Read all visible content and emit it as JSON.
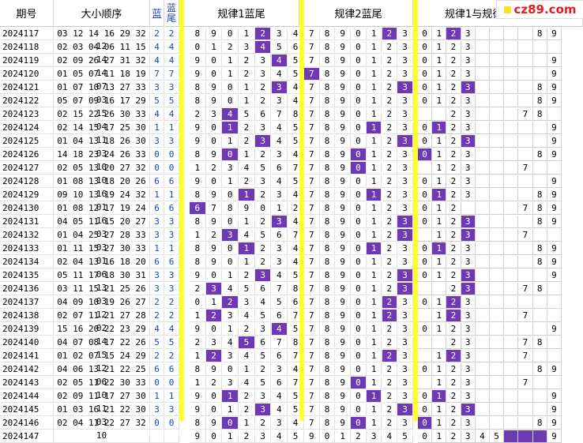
{
  "headers": {
    "issue": "期号",
    "order": "大小顺序",
    "blue": "蓝",
    "tail": [
      "蓝",
      "尾"
    ],
    "rule1": "规律1蓝尾",
    "rule2": "规律2蓝尾",
    "rule12": "规律1与规律"
  },
  "watermark": "cz89.com",
  "colors": {
    "highlight": "#6f39b5",
    "separator": "#ffff29",
    "blue_text": "#1f3fbf"
  },
  "rows": [
    {
      "issue": "2024117",
      "nums": "03 12 14 16 29 32 12",
      "blue": "2",
      "tail": "2",
      "r1": [
        "8",
        "9",
        "0",
        "1",
        "2",
        "3",
        "4"
      ],
      "r1h": [
        4
      ],
      "r2": [
        "7",
        "8",
        "9",
        "0",
        "1",
        "2",
        "3"
      ],
      "r2h": [
        5
      ],
      "r3": [
        "0",
        "1",
        "2",
        "3",
        "",
        "",
        "",
        "",
        "8",
        "9"
      ],
      "r3h": [
        2
      ]
    },
    {
      "issue": "2024118",
      "nums": "02 03 04 06 11 15 14",
      "blue": "4",
      "tail": "4",
      "r1": [
        "0",
        "1",
        "2",
        "3",
        "4",
        "5",
        "6"
      ],
      "r1h": [
        4
      ],
      "r2": [
        "7",
        "8",
        "9",
        "0",
        "1",
        "2",
        "3"
      ],
      "r2h": [],
      "r3": [
        "0",
        "1",
        "2",
        "3",
        "",
        "",
        "",
        "",
        "",
        ""
      ],
      "r3h": []
    },
    {
      "issue": "2024119",
      "nums": "02 09 26 27 31 32 14",
      "blue": "4",
      "tail": "4",
      "r1": [
        "9",
        "0",
        "1",
        "2",
        "3",
        "4",
        "5"
      ],
      "r1h": [
        5
      ],
      "r2": [
        "7",
        "8",
        "9",
        "0",
        "1",
        "2",
        "3"
      ],
      "r2h": [],
      "r3": [
        "0",
        "1",
        "2",
        "3",
        "",
        "",
        "",
        "",
        "",
        "9"
      ],
      "r3h": []
    },
    {
      "issue": "2024120",
      "nums": "01 05 07 11 18 19 07",
      "blue": "7",
      "tail": "7",
      "r1": [
        "9",
        "0",
        "1",
        "2",
        "3",
        "4",
        "5"
      ],
      "r1h": [],
      "r2": [
        "7",
        "8",
        "9",
        "0",
        "1",
        "2",
        "3"
      ],
      "r2h": [
        0
      ],
      "r3": [
        "0",
        "1",
        "2",
        "3",
        "",
        "",
        "",
        "",
        "",
        "9"
      ],
      "r3h": []
    },
    {
      "issue": "2024121",
      "nums": "01 07 10 13 27 33 03",
      "blue": "3",
      "tail": "3",
      "r1": [
        "8",
        "9",
        "0",
        "1",
        "2",
        "3",
        "4"
      ],
      "r1h": [
        5
      ],
      "r2": [
        "7",
        "8",
        "9",
        "0",
        "1",
        "2",
        "3"
      ],
      "r2h": [
        6
      ],
      "r3": [
        "0",
        "1",
        "2",
        "3",
        "",
        "",
        "",
        "",
        "8",
        "9"
      ],
      "r3h": [
        3
      ]
    },
    {
      "issue": "2024122",
      "nums": "05 07 09 16 17 29 15",
      "blue": "5",
      "tail": "5",
      "r1": [
        "8",
        "9",
        "0",
        "1",
        "2",
        "3",
        "4"
      ],
      "r1h": [],
      "r2": [
        "7",
        "8",
        "9",
        "0",
        "1",
        "2",
        "3"
      ],
      "r2h": [],
      "r3": [
        "0",
        "1",
        "2",
        "3",
        "",
        "",
        "",
        "",
        "8",
        "9"
      ],
      "r3h": []
    },
    {
      "issue": "2024123",
      "nums": "02 15 22 26 30 33 04",
      "blue": "4",
      "tail": "4",
      "r1": [
        "2",
        "3",
        "4",
        "5",
        "6",
        "7",
        "8"
      ],
      "r1h": [
        2
      ],
      "r2": [
        "7",
        "8",
        "9",
        "0",
        "1",
        "2",
        "3"
      ],
      "r2h": [],
      "r3": [
        "",
        "",
        "2",
        "3",
        "",
        "",
        "",
        "7",
        "8",
        ""
      ],
      "r3h": []
    },
    {
      "issue": "2024124",
      "nums": "02 14 15 17 25 30 11",
      "blue": "1",
      "tail": "1",
      "r1": [
        "9",
        "0",
        "1",
        "2",
        "3",
        "4",
        "5"
      ],
      "r1h": [
        2
      ],
      "r2": [
        "7",
        "8",
        "9",
        "0",
        "1",
        "2",
        "3"
      ],
      "r2h": [
        4
      ],
      "r3": [
        "0",
        "1",
        "2",
        "3",
        "",
        "",
        "",
        "",
        "",
        "9"
      ],
      "r3h": [
        1
      ]
    },
    {
      "issue": "2024125",
      "nums": "01 04 13 18 26 30 03",
      "blue": "3",
      "tail": "3",
      "r1": [
        "9",
        "0",
        "1",
        "2",
        "3",
        "4",
        "5"
      ],
      "r1h": [
        4
      ],
      "r2": [
        "7",
        "8",
        "9",
        "0",
        "1",
        "2",
        "3"
      ],
      "r2h": [
        6
      ],
      "r3": [
        "0",
        "1",
        "2",
        "3",
        "",
        "",
        "",
        "",
        "",
        "9"
      ],
      "r3h": [
        3
      ]
    },
    {
      "issue": "2024126",
      "nums": "14 18 23 24 26 33 10",
      "blue": "0",
      "tail": "0",
      "r1": [
        "8",
        "9",
        "0",
        "1",
        "2",
        "3",
        "4"
      ],
      "r1h": [
        2
      ],
      "r2": [
        "7",
        "8",
        "9",
        "0",
        "1",
        "2",
        "3"
      ],
      "r2h": [
        3
      ],
      "r3": [
        "0",
        "1",
        "2",
        "3",
        "",
        "",
        "",
        "",
        "8",
        "9"
      ],
      "r3h": [
        0
      ]
    },
    {
      "issue": "2024127",
      "nums": "02 05 13 20 27 32 10",
      "blue": "0",
      "tail": "0",
      "r1": [
        "1",
        "2",
        "3",
        "4",
        "5",
        "6",
        "7"
      ],
      "r1h": [],
      "r2": [
        "7",
        "8",
        "9",
        "0",
        "1",
        "2",
        "3"
      ],
      "r2h": [
        3
      ],
      "r3": [
        "",
        "1",
        "2",
        "3",
        "",
        "",
        "",
        "7",
        "",
        ""
      ],
      "r3h": []
    },
    {
      "issue": "2024128",
      "nums": "01 08 13 18 20 26 16",
      "blue": "6",
      "tail": "6",
      "r1": [
        "9",
        "0",
        "1",
        "2",
        "3",
        "4",
        "5"
      ],
      "r1h": [],
      "r2": [
        "7",
        "8",
        "9",
        "0",
        "1",
        "2",
        "3"
      ],
      "r2h": [],
      "r3": [
        "0",
        "1",
        "2",
        "3",
        "",
        "",
        "",
        "",
        "",
        "9"
      ],
      "r3h": []
    },
    {
      "issue": "2024129",
      "nums": "09 10 13 19 24 32 01",
      "blue": "1",
      "tail": "1",
      "r1": [
        "8",
        "9",
        "0",
        "1",
        "2",
        "3",
        "4"
      ],
      "r1h": [
        3
      ],
      "r2": [
        "7",
        "8",
        "9",
        "0",
        "1",
        "2",
        "3"
      ],
      "r2h": [
        4
      ],
      "r3": [
        "0",
        "1",
        "2",
        "3",
        "",
        "",
        "",
        "",
        "8",
        "9"
      ],
      "r3h": [
        1
      ]
    },
    {
      "issue": "2024130",
      "nums": "01 08 12 17 19 24 16",
      "blue": "6",
      "tail": "6",
      "r1": [
        "6",
        "7",
        "8",
        "9",
        "0",
        "1",
        "2"
      ],
      "r1h": [
        0
      ],
      "r2": [
        "7",
        "8",
        "9",
        "0",
        "1",
        "2",
        "3"
      ],
      "r2h": [],
      "r3": [
        "0",
        "1",
        "2",
        "",
        "",
        "",
        "",
        "7",
        "8",
        "9"
      ],
      "r3h": []
    },
    {
      "issue": "2024131",
      "nums": "04 05 11 15 20 27 03",
      "blue": "3",
      "tail": "3",
      "r1": [
        "8",
        "9",
        "0",
        "1",
        "2",
        "3",
        "4"
      ],
      "r1h": [
        5
      ],
      "r2": [
        "7",
        "8",
        "9",
        "0",
        "1",
        "2",
        "3"
      ],
      "r2h": [
        6
      ],
      "r3": [
        "0",
        "1",
        "2",
        "3",
        "",
        "",
        "",
        "",
        "8",
        "9"
      ],
      "r3h": [
        3
      ]
    },
    {
      "issue": "2024132",
      "nums": "01 04 25 27 28 33 03",
      "blue": "3",
      "tail": "3",
      "r1": [
        "1",
        "2",
        "3",
        "4",
        "5",
        "6",
        "7"
      ],
      "r1h": [
        2
      ],
      "r2": [
        "7",
        "8",
        "9",
        "0",
        "1",
        "2",
        "3"
      ],
      "r2h": [
        6
      ],
      "r3": [
        "",
        "1",
        "2",
        "3",
        "",
        "",
        "",
        "7",
        "",
        ""
      ],
      "r3h": [
        3
      ]
    },
    {
      "issue": "2024133",
      "nums": "01 11 15 27 30 33 01",
      "blue": "1",
      "tail": "1",
      "r1": [
        "8",
        "9",
        "0",
        "1",
        "2",
        "3",
        "4"
      ],
      "r1h": [
        3
      ],
      "r2": [
        "7",
        "8",
        "9",
        "0",
        "1",
        "2",
        "3"
      ],
      "r2h": [
        4
      ],
      "r3": [
        "0",
        "1",
        "2",
        "3",
        "",
        "",
        "",
        "",
        "8",
        "9"
      ],
      "r3h": [
        1
      ]
    },
    {
      "issue": "2024134",
      "nums": "02 04 13 16 18 20 06",
      "blue": "6",
      "tail": "6",
      "r1": [
        "8",
        "9",
        "0",
        "1",
        "2",
        "3",
        "4"
      ],
      "r1h": [],
      "r2": [
        "7",
        "8",
        "9",
        "0",
        "1",
        "2",
        "3"
      ],
      "r2h": [],
      "r3": [
        "0",
        "1",
        "2",
        "3",
        "",
        "",
        "",
        "",
        "8",
        "9"
      ],
      "r3h": []
    },
    {
      "issue": "2024135",
      "nums": "05 11 17 18 30 31 13",
      "blue": "3",
      "tail": "3",
      "r1": [
        "9",
        "0",
        "1",
        "2",
        "3",
        "4",
        "5"
      ],
      "r1h": [
        4
      ],
      "r2": [
        "7",
        "8",
        "9",
        "0",
        "1",
        "2",
        "3"
      ],
      "r2h": [
        6
      ],
      "r3": [
        "0",
        "1",
        "2",
        "3",
        "",
        "",
        "",
        "",
        "",
        "9"
      ],
      "r3h": [
        3
      ]
    },
    {
      "issue": "2024136",
      "nums": "03 11 15 21 25 26 03",
      "blue": "3",
      "tail": "3",
      "r1": [
        "2",
        "3",
        "4",
        "5",
        "6",
        "7",
        "8"
      ],
      "r1h": [
        1
      ],
      "r2": [
        "7",
        "8",
        "9",
        "0",
        "1",
        "2",
        "3"
      ],
      "r2h": [
        6
      ],
      "r3": [
        "",
        "",
        "2",
        "3",
        "",
        "",
        "",
        "7",
        "8",
        ""
      ],
      "r3h": [
        3
      ]
    },
    {
      "issue": "2024137",
      "nums": "04 09 10 19 26 27 12",
      "blue": "2",
      "tail": "2",
      "r1": [
        "0",
        "1",
        "2",
        "3",
        "4",
        "5",
        "6"
      ],
      "r1h": [
        2
      ],
      "r2": [
        "7",
        "8",
        "9",
        "0",
        "1",
        "2",
        "3"
      ],
      "r2h": [
        5
      ],
      "r3": [
        "0",
        "1",
        "2",
        "3",
        "",
        "",
        "",
        "",
        "",
        ""
      ],
      "r3h": [
        2
      ]
    },
    {
      "issue": "2024138",
      "nums": "02 07 11 21 27 28 02",
      "blue": "2",
      "tail": "2",
      "r1": [
        "1",
        "2",
        "3",
        "4",
        "5",
        "6",
        "7"
      ],
      "r1h": [
        1
      ],
      "r2": [
        "7",
        "8",
        "9",
        "0",
        "1",
        "2",
        "3"
      ],
      "r2h": [
        5
      ],
      "r3": [
        "",
        "1",
        "2",
        "3",
        "",
        "",
        "",
        "7",
        "",
        ""
      ],
      "r3h": [
        2
      ]
    },
    {
      "issue": "2024139",
      "nums": "15 16 20 22 23 29 14",
      "blue": "4",
      "tail": "4",
      "r1": [
        "9",
        "0",
        "1",
        "2",
        "3",
        "4",
        "5"
      ],
      "r1h": [
        5
      ],
      "r2": [
        "7",
        "8",
        "9",
        "0",
        "1",
        "2",
        "3"
      ],
      "r2h": [],
      "r3": [
        "0",
        "1",
        "2",
        "3",
        "",
        "",
        "",
        "",
        "",
        "9"
      ],
      "r3h": []
    },
    {
      "issue": "2024140",
      "nums": "04 07 08 17 22 26 15",
      "blue": "5",
      "tail": "5",
      "r1": [
        "2",
        "3",
        "4",
        "5",
        "6",
        "7",
        "8"
      ],
      "r1h": [
        3
      ],
      "r2": [
        "7",
        "8",
        "9",
        "0",
        "1",
        "2",
        "3"
      ],
      "r2h": [],
      "r3": [
        "",
        "",
        "2",
        "3",
        "",
        "",
        "",
        "7",
        "8",
        ""
      ],
      "r3h": []
    },
    {
      "issue": "2024141",
      "nums": "01 02 07 15 24 29 12",
      "blue": "2",
      "tail": "2",
      "r1": [
        "1",
        "2",
        "3",
        "4",
        "5",
        "6",
        "7"
      ],
      "r1h": [
        1
      ],
      "r2": [
        "7",
        "8",
        "9",
        "0",
        "1",
        "2",
        "3"
      ],
      "r2h": [
        5
      ],
      "r3": [
        "",
        "1",
        "2",
        "3",
        "",
        "",
        "",
        "7",
        "",
        ""
      ],
      "r3h": [
        2
      ]
    },
    {
      "issue": "2024142",
      "nums": "04 06 13 21 22 25 06",
      "blue": "6",
      "tail": "6",
      "r1": [
        "8",
        "9",
        "0",
        "1",
        "2",
        "3",
        "4"
      ],
      "r1h": [],
      "r2": [
        "7",
        "8",
        "9",
        "0",
        "1",
        "2",
        "3"
      ],
      "r2h": [],
      "r3": [
        "0",
        "1",
        "2",
        "3",
        "",
        "",
        "",
        "",
        "8",
        "9"
      ],
      "r3h": []
    },
    {
      "issue": "2024143",
      "nums": "02 05 11 22 30 33 10",
      "blue": "0",
      "tail": "0",
      "r1": [
        "1",
        "2",
        "3",
        "4",
        "5",
        "6",
        "7"
      ],
      "r1h": [],
      "r2": [
        "7",
        "8",
        "9",
        "0",
        "1",
        "2",
        "3"
      ],
      "r2h": [
        3
      ],
      "r3": [
        "",
        "1",
        "2",
        "3",
        "",
        "",
        "",
        "7",
        "",
        ""
      ],
      "r3h": []
    },
    {
      "issue": "2024144",
      "nums": "02 09 11 17 27 30 11",
      "blue": "1",
      "tail": "1",
      "r1": [
        "9",
        "0",
        "1",
        "2",
        "3",
        "4",
        "5"
      ],
      "r1h": [
        2
      ],
      "r2": [
        "7",
        "8",
        "9",
        "0",
        "1",
        "2",
        "3"
      ],
      "r2h": [
        4
      ],
      "r3": [
        "0",
        "1",
        "2",
        "3",
        "",
        "",
        "",
        "",
        "",
        "9"
      ],
      "r3h": [
        1
      ]
    },
    {
      "issue": "2024145",
      "nums": "01 03 16 21 22 30 03",
      "blue": "3",
      "tail": "3",
      "r1": [
        "9",
        "0",
        "1",
        "2",
        "3",
        "4",
        "5"
      ],
      "r1h": [
        4
      ],
      "r2": [
        "7",
        "8",
        "9",
        "0",
        "1",
        "2",
        "3"
      ],
      "r2h": [
        6
      ],
      "r3": [
        "0",
        "1",
        "2",
        "3",
        "",
        "",
        "",
        "",
        "",
        "9"
      ],
      "r3h": [
        3
      ]
    },
    {
      "issue": "2024146",
      "nums": "02 04 11 22 27 32 10",
      "blue": "0",
      "tail": "0",
      "r1": [
        "8",
        "9",
        "0",
        "1",
        "2",
        "3",
        "4"
      ],
      "r1h": [
        2
      ],
      "r2": [
        "7",
        "8",
        "9",
        "0",
        "1",
        "2",
        "3"
      ],
      "r2h": [
        3
      ],
      "r3": [
        "0",
        "1",
        "2",
        "3",
        "",
        "",
        "",
        "",
        "8",
        "9"
      ],
      "r3h": [
        0
      ]
    },
    {
      "issue": "2024147",
      "nums": "",
      "blue": "",
      "tail": "",
      "r1": [
        "9",
        "0",
        "1",
        "2",
        "3",
        "4",
        "5"
      ],
      "r1h": [],
      "r2": [
        "9",
        "0",
        "1",
        "2",
        "3",
        "4",
        "5"
      ],
      "r2h": [],
      "r3": [
        "0",
        "1",
        "2",
        "3",
        "4",
        "5",
        "",
        "",
        "",
        "9"
      ],
      "r3h": [
        6,
        7,
        8
      ]
    }
  ]
}
